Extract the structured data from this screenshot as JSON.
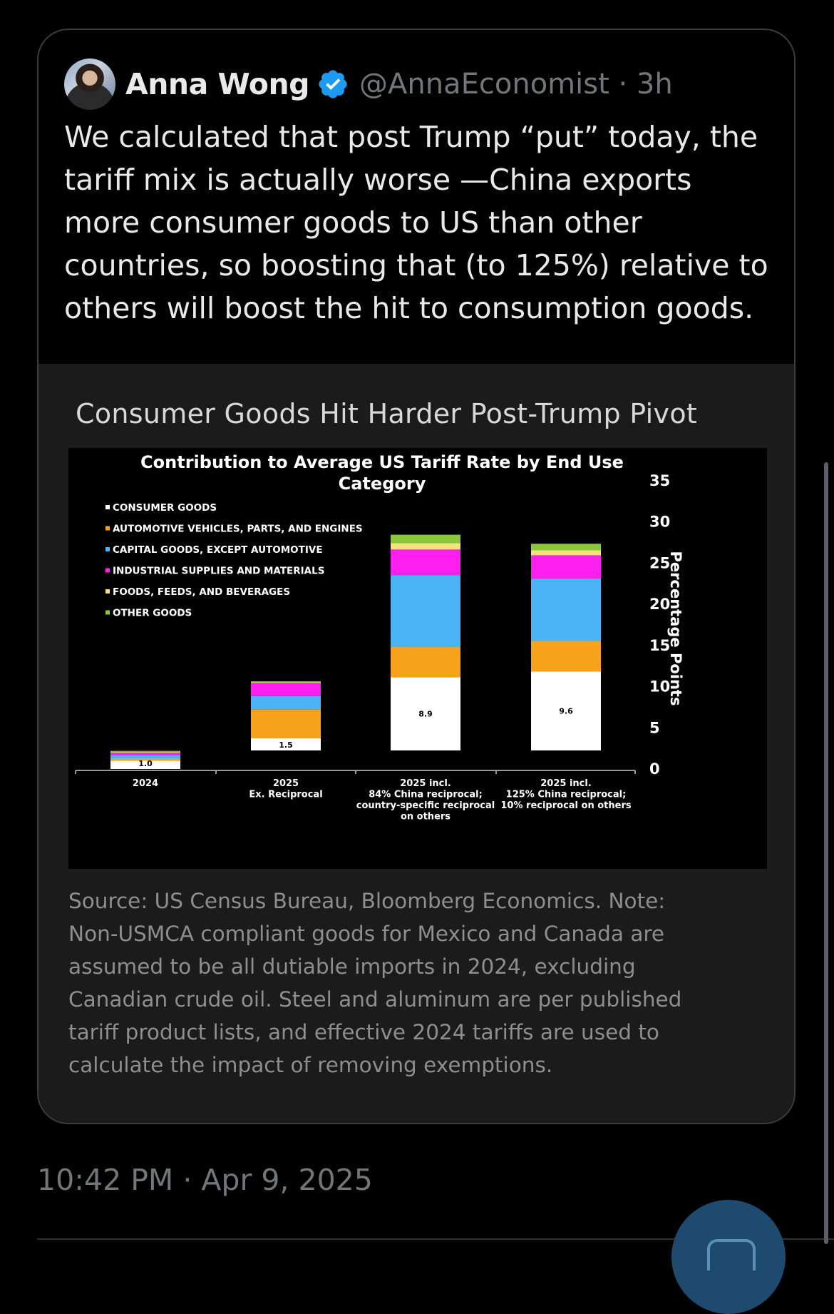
{
  "tweet": {
    "author_name": "Anna Wong",
    "verified": true,
    "handle_time": "@AnnaEconomist · 3h",
    "text": "We calculated that post Trump “put” today, the\ntariff mix is actually worse —China exports\nmore consumer goods to US than other\ncountries, so boosting that (to 125%) relative to\nothers will boost the hit to consumption  goods.",
    "media_title": "Consumer Goods Hit Harder Post-Trump Pivot",
    "source_note": "Source: US Census Bureau, Bloomberg Economics. Note:\nNon-USMCA compliant goods for Mexico and Canada are\nassumed to be all dutiable imports in 2024, excluding\nCanadian crude oil. Steel and aluminum are per published\ntariff product lists, and effective 2024 tariffs are used to\ncalculate the impact of removing exemptions.",
    "timestamp": "10:42 PM · Apr 9, 2025"
  },
  "icons": {
    "verified": "verified-badge-icon",
    "fab": "compose-reply-icon"
  },
  "colors": {
    "accent": "#1d9bf0",
    "consumer": "#ffffff",
    "automotive": "#f7a21b",
    "capital": "#4ab3f4",
    "industrial": "#ff1ef0",
    "foods": "#f5e27a",
    "other": "#8cc83c"
  },
  "chart_data": {
    "type": "bar",
    "stacked": true,
    "title": "Contribution to Average US Tariff Rate by End Use Category",
    "title_lines": [
      "Contribution to Average US Tariff Rate by End Use",
      "Category"
    ],
    "xlabel": "",
    "ylabel": "Percentage Points",
    "ylim": [
      0,
      35
    ],
    "yticks": [
      0,
      5,
      10,
      15,
      20,
      25,
      30,
      35
    ],
    "y_axis_side": "right",
    "legend_position": "top-left",
    "grid": false,
    "categories": [
      [
        "2024"
      ],
      [
        "2025",
        "Ex. Reciprocal"
      ],
      [
        "2025 incl.",
        "84% China reciprocal;",
        "country-specific reciprocal",
        "on others"
      ],
      [
        "2025 incl.",
        "125% China reciprocal;",
        "10% reciprocal on others"
      ]
    ],
    "series": [
      {
        "name": "CONSUMER GOODS",
        "color_key": "consumer",
        "values": [
          1.0,
          1.5,
          8.9,
          9.6
        ]
      },
      {
        "name": "AUTOMOTIVE VEHICLES, PARTS, AND ENGINES",
        "color_key": "automotive",
        "values": [
          0.3,
          3.5,
          3.7,
          3.7
        ]
      },
      {
        "name": "CAPITAL GOODS, EXCEPT AUTOMOTIVE",
        "color_key": "capital",
        "values": [
          0.4,
          1.6,
          8.7,
          7.6
        ]
      },
      {
        "name": "INDUSTRIAL SUPPLIES AND MATERIALS",
        "color_key": "industrial",
        "values": [
          0.3,
          1.6,
          3.1,
          2.8
        ]
      },
      {
        "name": "FOODS, FEEDS, AND BEVERAGES",
        "color_key": "foods",
        "values": [
          0.1,
          0.1,
          0.8,
          0.6
        ]
      },
      {
        "name": "OTHER GOODS",
        "color_key": "other",
        "values": [
          0.1,
          0.1,
          1.0,
          0.8
        ]
      }
    ],
    "data_labels": [
      "1.0",
      "1.5",
      "8.9",
      "9.6"
    ]
  }
}
